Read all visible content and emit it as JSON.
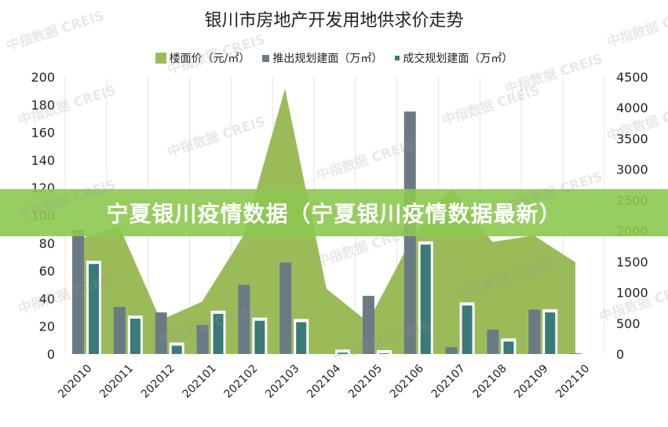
{
  "title": "银川市房地产开发用地供求价走势",
  "legend": [
    {
      "label": "楼面价（元/㎡）",
      "color": "#9bbb59",
      "shape": "square-large"
    },
    {
      "label": "推出规划建面（万㎡）",
      "color": "#6b7b86",
      "shape": "square"
    },
    {
      "label": "成交规划建面（万㎡）",
      "color": "#3a7a78",
      "shape": "square-small"
    }
  ],
  "banner": {
    "text": "宁夏银川疫情数据（宁夏银川疫情数据最新）",
    "color": "#8cc850"
  },
  "watermark": "中指数据 CREIS",
  "colors": {
    "area": "#9bbb59",
    "supply": "#6b7b86",
    "deal": "#3a7a78",
    "grid": "#e6e6e6"
  },
  "chart_data": {
    "type": "bar",
    "title": "银川市房地产开发用地供求价走势",
    "categories": [
      "202010",
      "202011",
      "202012",
      "202101",
      "202102",
      "202103",
      "202104",
      "202105",
      "202106",
      "202107",
      "202108",
      "202109",
      "202110"
    ],
    "series": [
      {
        "name": "楼面价（元/㎡）",
        "type": "area",
        "axis": "right",
        "values": [
          1860,
          2080,
          550,
          850,
          1925,
          4310,
          1060,
          520,
          1800,
          2690,
          1820,
          1925,
          1490
        ]
      },
      {
        "name": "推出规划建面（万㎡）",
        "type": "bar",
        "axis": "left",
        "values": [
          89.5,
          34,
          30,
          21,
          50,
          66,
          0,
          42,
          175,
          5,
          17.5,
          32,
          0.5
        ]
      },
      {
        "name": "成交规划建面（万㎡）",
        "type": "bar",
        "axis": "left",
        "values": [
          65,
          25.5,
          6,
          29,
          24,
          23,
          1,
          0.5,
          79,
          35,
          9,
          30,
          0
        ]
      }
    ],
    "left_axis": {
      "ylim": [
        0,
        200
      ],
      "ticks": [
        0,
        20,
        40,
        60,
        80,
        100,
        120,
        140,
        160,
        180,
        200
      ]
    },
    "right_axis": {
      "ylim": [
        0,
        4500
      ],
      "ticks": [
        0,
        500,
        1000,
        1500,
        2000,
        2500,
        3000,
        3500,
        4000,
        4500
      ]
    },
    "xlabel": "",
    "ylabel": "",
    "grid": "vertical",
    "legend_position": "top"
  }
}
